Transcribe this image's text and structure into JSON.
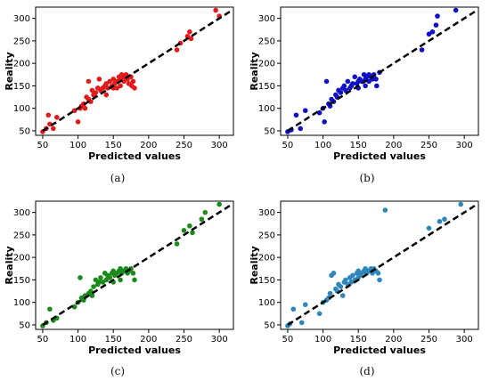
{
  "figure": {
    "panels": [
      {
        "caption": "(a)",
        "color": "#e31a1c"
      },
      {
        "caption": "(b)",
        "color": "#1010c8"
      },
      {
        "caption": "(c)",
        "color": "#1a8a1a"
      },
      {
        "caption": "(d)",
        "color": "#2f86b8"
      }
    ]
  },
  "chart_data": [
    {
      "type": "scatter",
      "xlabel": "Predicted values",
      "ylabel": "Reality",
      "xlim": [
        40,
        320
      ],
      "ylim": [
        40,
        325
      ],
      "xticks": [
        50,
        100,
        150,
        200,
        250,
        300
      ],
      "yticks": [
        50,
        100,
        150,
        200,
        250,
        300
      ],
      "reference_line": [
        [
          50,
          50
        ],
        [
          315,
          315
        ]
      ],
      "points": [
        [
          50,
          48
        ],
        [
          55,
          55
        ],
        [
          60,
          65
        ],
        [
          58,
          85
        ],
        [
          65,
          55
        ],
        [
          70,
          80
        ],
        [
          95,
          95
        ],
        [
          100,
          70
        ],
        [
          103,
          100
        ],
        [
          105,
          105
        ],
        [
          108,
          110
        ],
        [
          110,
          100
        ],
        [
          112,
          125
        ],
        [
          115,
          120
        ],
        [
          118,
          115
        ],
        [
          115,
          160
        ],
        [
          120,
          140
        ],
        [
          122,
          130
        ],
        [
          125,
          135
        ],
        [
          128,
          145
        ],
        [
          130,
          165
        ],
        [
          132,
          140
        ],
        [
          135,
          145
        ],
        [
          138,
          150
        ],
        [
          140,
          155
        ],
        [
          140,
          130
        ],
        [
          142,
          145
        ],
        [
          145,
          160
        ],
        [
          148,
          150
        ],
        [
          150,
          145
        ],
        [
          150,
          165
        ],
        [
          152,
          155
        ],
        [
          155,
          160
        ],
        [
          155,
          145
        ],
        [
          158,
          170
        ],
        [
          160,
          165
        ],
        [
          160,
          150
        ],
        [
          162,
          175
        ],
        [
          165,
          170
        ],
        [
          165,
          160
        ],
        [
          168,
          175
        ],
        [
          170,
          165
        ],
        [
          172,
          155
        ],
        [
          175,
          170
        ],
        [
          176,
          150
        ],
        [
          178,
          160
        ],
        [
          180,
          145
        ],
        [
          240,
          230
        ],
        [
          245,
          245
        ],
        [
          255,
          260
        ],
        [
          258,
          270
        ],
        [
          260,
          255
        ],
        [
          295,
          318
        ],
        [
          300,
          305
        ]
      ]
    },
    {
      "type": "scatter",
      "xlabel": "Predicted values",
      "ylabel": "Reality",
      "xlim": [
        40,
        320
      ],
      "ylim": [
        40,
        325
      ],
      "xticks": [
        50,
        100,
        150,
        200,
        250,
        300
      ],
      "yticks": [
        50,
        100,
        150,
        200,
        250,
        300
      ],
      "reference_line": [
        [
          50,
          50
        ],
        [
          315,
          315
        ]
      ],
      "points": [
        [
          50,
          48
        ],
        [
          55,
          52
        ],
        [
          62,
          85
        ],
        [
          68,
          55
        ],
        [
          75,
          95
        ],
        [
          95,
          90
        ],
        [
          100,
          100
        ],
        [
          102,
          70
        ],
        [
          105,
          160
        ],
        [
          108,
          110
        ],
        [
          110,
          105
        ],
        [
          112,
          120
        ],
        [
          115,
          115
        ],
        [
          118,
          130
        ],
        [
          120,
          125
        ],
        [
          122,
          140
        ],
        [
          125,
          135
        ],
        [
          128,
          145
        ],
        [
          130,
          150
        ],
        [
          132,
          140
        ],
        [
          135,
          160
        ],
        [
          138,
          145
        ],
        [
          140,
          150
        ],
        [
          142,
          155
        ],
        [
          145,
          170
        ],
        [
          148,
          155
        ],
        [
          150,
          160
        ],
        [
          150,
          145
        ],
        [
          152,
          165
        ],
        [
          155,
          160
        ],
        [
          158,
          175
        ],
        [
          160,
          165
        ],
        [
          160,
          150
        ],
        [
          162,
          170
        ],
        [
          165,
          175
        ],
        [
          165,
          160
        ],
        [
          168,
          170
        ],
        [
          170,
          165
        ],
        [
          172,
          175
        ],
        [
          175,
          165
        ],
        [
          176,
          150
        ],
        [
          180,
          180
        ],
        [
          240,
          230
        ],
        [
          250,
          265
        ],
        [
          255,
          270
        ],
        [
          260,
          285
        ],
        [
          262,
          305
        ],
        [
          288,
          318
        ]
      ]
    },
    {
      "type": "scatter",
      "xlabel": "Predicted values",
      "ylabel": "Reality",
      "xlim": [
        40,
        320
      ],
      "ylim": [
        40,
        325
      ],
      "xticks": [
        50,
        100,
        150,
        200,
        250,
        300
      ],
      "yticks": [
        50,
        100,
        150,
        200,
        250,
        300
      ],
      "reference_line": [
        [
          50,
          50
        ],
        [
          315,
          315
        ]
      ],
      "points": [
        [
          50,
          48
        ],
        [
          55,
          55
        ],
        [
          60,
          85
        ],
        [
          65,
          60
        ],
        [
          70,
          65
        ],
        [
          95,
          90
        ],
        [
          100,
          100
        ],
        [
          103,
          155
        ],
        [
          105,
          110
        ],
        [
          108,
          105
        ],
        [
          110,
          115
        ],
        [
          115,
          120
        ],
        [
          118,
          125
        ],
        [
          120,
          115
        ],
        [
          122,
          135
        ],
        [
          125,
          150
        ],
        [
          128,
          140
        ],
        [
          130,
          145
        ],
        [
          132,
          155
        ],
        [
          135,
          145
        ],
        [
          138,
          165
        ],
        [
          140,
          150
        ],
        [
          142,
          160
        ],
        [
          145,
          155
        ],
        [
          148,
          165
        ],
        [
          150,
          170
        ],
        [
          150,
          145
        ],
        [
          152,
          160
        ],
        [
          155,
          165
        ],
        [
          158,
          170
        ],
        [
          160,
          175
        ],
        [
          160,
          150
        ],
        [
          162,
          165
        ],
        [
          165,
          170
        ],
        [
          168,
          175
        ],
        [
          170,
          165
        ],
        [
          172,
          170
        ],
        [
          175,
          175
        ],
        [
          178,
          165
        ],
        [
          180,
          150
        ],
        [
          240,
          230
        ],
        [
          250,
          260
        ],
        [
          258,
          270
        ],
        [
          262,
          255
        ],
        [
          275,
          285
        ],
        [
          280,
          300
        ],
        [
          300,
          318
        ]
      ]
    },
    {
      "type": "scatter",
      "xlabel": "Predicted values",
      "ylabel": "Reality",
      "xlim": [
        40,
        320
      ],
      "ylim": [
        40,
        325
      ],
      "xticks": [
        50,
        100,
        150,
        200,
        250,
        300
      ],
      "yticks": [
        50,
        100,
        150,
        200,
        250,
        300
      ],
      "reference_line": [
        [
          50,
          50
        ],
        [
          315,
          315
        ]
      ],
      "points": [
        [
          50,
          48
        ],
        [
          53,
          52
        ],
        [
          58,
          85
        ],
        [
          70,
          55
        ],
        [
          75,
          95
        ],
        [
          95,
          75
        ],
        [
          100,
          100
        ],
        [
          105,
          105
        ],
        [
          108,
          110
        ],
        [
          110,
          120
        ],
        [
          112,
          160
        ],
        [
          115,
          165
        ],
        [
          118,
          130
        ],
        [
          120,
          125
        ],
        [
          122,
          140
        ],
        [
          125,
          135
        ],
        [
          128,
          115
        ],
        [
          130,
          145
        ],
        [
          132,
          150
        ],
        [
          135,
          140
        ],
        [
          138,
          155
        ],
        [
          140,
          145
        ],
        [
          142,
          160
        ],
        [
          145,
          150
        ],
        [
          148,
          165
        ],
        [
          150,
          155
        ],
        [
          150,
          170
        ],
        [
          152,
          160
        ],
        [
          155,
          165
        ],
        [
          158,
          170
        ],
        [
          160,
          175
        ],
        [
          162,
          165
        ],
        [
          165,
          170
        ],
        [
          168,
          175
        ],
        [
          170,
          165
        ],
        [
          172,
          175
        ],
        [
          175,
          170
        ],
        [
          178,
          165
        ],
        [
          180,
          150
        ],
        [
          188,
          305
        ],
        [
          250,
          265
        ],
        [
          265,
          280
        ],
        [
          272,
          285
        ],
        [
          295,
          318
        ]
      ]
    }
  ]
}
